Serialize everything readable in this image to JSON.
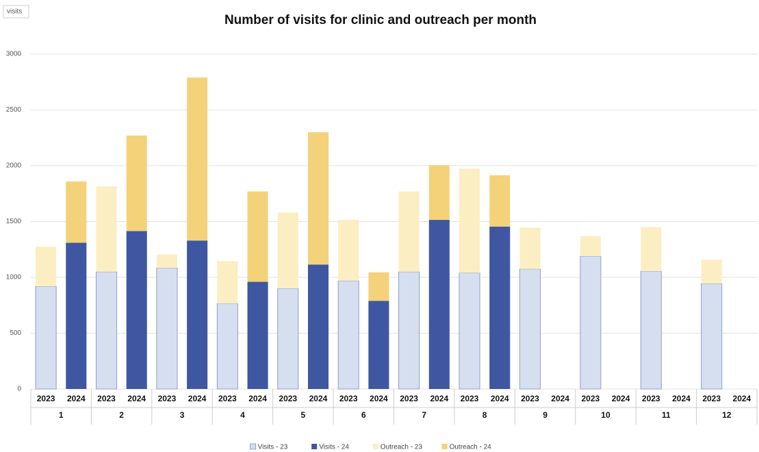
{
  "chart_data": {
    "type": "stacked-bar",
    "title": "Number of visits for clinic and outreach per month",
    "field_button": "visits",
    "groups": [
      "1",
      "2",
      "3",
      "4",
      "5",
      "6",
      "7",
      "8",
      "9",
      "10",
      "11",
      "12"
    ],
    "categories": [
      "2023",
      "2024",
      "2023",
      "2024",
      "2023",
      "2024",
      "2023",
      "2024",
      "2023",
      "2024",
      "2023",
      "2024",
      "2023",
      "2024",
      "2023",
      "2024",
      "2023",
      "2024",
      "2023",
      "2024",
      "2023",
      "2024",
      "2023",
      "2024"
    ],
    "series": [
      {
        "name": "Visits - 23",
        "color": "#d6dff0",
        "values": [
          920,
          null,
          1050,
          null,
          1085,
          null,
          765,
          null,
          900,
          null,
          970,
          null,
          1050,
          null,
          1040,
          null,
          1075,
          null,
          1190,
          null,
          1055,
          null,
          945,
          null
        ]
      },
      {
        "name": "Visits - 24",
        "color": "#3e57a0",
        "values": [
          null,
          1310,
          null,
          1415,
          null,
          1330,
          null,
          960,
          null,
          1115,
          null,
          790,
          null,
          1515,
          null,
          1455,
          null,
          null,
          null,
          null,
          null,
          null,
          null,
          null
        ]
      },
      {
        "name": "Outreach - 23",
        "color": "#fbeec2",
        "values": [
          355,
          null,
          765,
          null,
          120,
          null,
          380,
          null,
          680,
          null,
          545,
          null,
          720,
          null,
          935,
          null,
          370,
          null,
          180,
          null,
          395,
          null,
          215,
          null
        ]
      },
      {
        "name": "Outreach - 24",
        "color": "#f4d27a",
        "values": [
          null,
          550,
          null,
          855,
          null,
          1460,
          null,
          810,
          null,
          1185,
          null,
          255,
          null,
          490,
          null,
          460,
          null,
          null,
          null,
          null,
          null,
          null,
          null,
          null
        ]
      }
    ],
    "ylim": [
      0,
      3000
    ],
    "yticks": [
      0,
      500,
      1000,
      1500,
      2000,
      2500,
      3000
    ],
    "grid": true,
    "legend": "bottom"
  }
}
